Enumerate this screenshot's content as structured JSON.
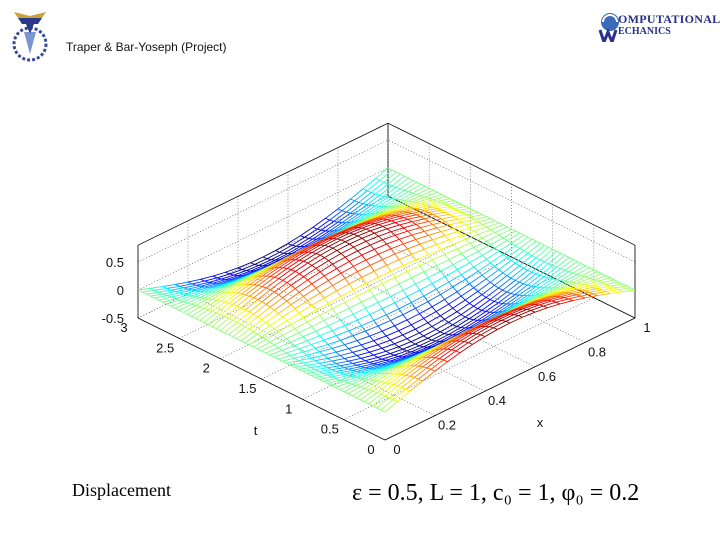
{
  "header": {
    "title": "Traper & Bar-Yoseph (Project)",
    "logo_right_line1": "OMPUTATIONAL",
    "logo_right_line2": "ECHANICS"
  },
  "caption": "Displacement",
  "equation": "ε = 0.5, L = 1, c₀ = 1, φ₀ = 0.2",
  "chart_data": {
    "type": "mesh3d",
    "surface": "u(x,t) = 0.5·sin(πx)·cos(πt)",
    "xlabel": "x",
    "ylabel": "t",
    "zlabel": "",
    "x_range": [
      0,
      1
    ],
    "t_range": [
      0,
      3
    ],
    "z_range": [
      -0.5,
      0.5
    ],
    "x_ticks": [
      "0",
      "0.2",
      "0.4",
      "0.6",
      "0.8",
      "1"
    ],
    "t_ticks": [
      "0",
      "0.5",
      "1",
      "1.5",
      "2",
      "2.5",
      "3"
    ],
    "z_ticks": [
      "-0.5",
      "0",
      "0.5"
    ],
    "grid": true,
    "colormap": "jet",
    "x_samples": 21,
    "t_samples": 61
  }
}
